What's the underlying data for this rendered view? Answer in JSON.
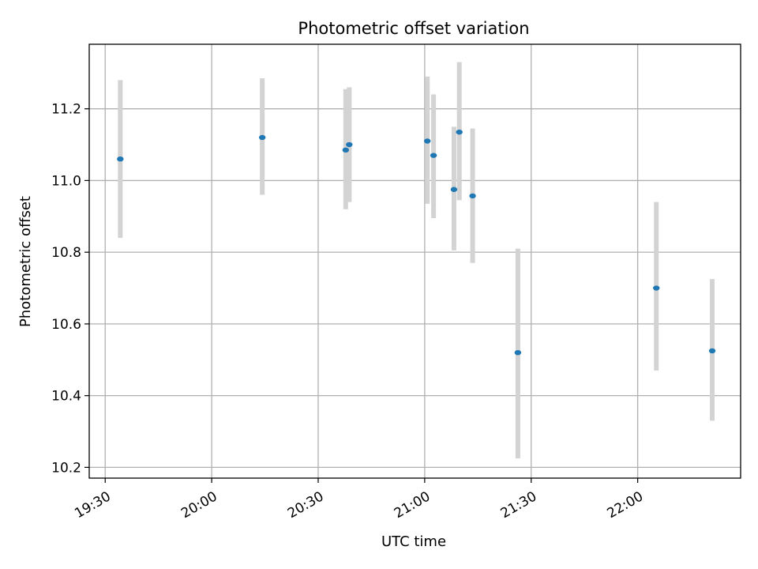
{
  "chart_data": {
    "type": "scatter",
    "title": "Photometric offset variation",
    "xlabel": "UTC time",
    "ylabel": "Photometric offset",
    "xlim": [
      "19:25:30",
      "22:29:00"
    ],
    "ylim": [
      10.17,
      11.38
    ],
    "x_ticks": [
      "19:30",
      "20:00",
      "20:30",
      "21:00",
      "21:30",
      "22:00"
    ],
    "y_ticks": [
      10.2,
      10.4,
      10.6,
      10.8,
      11.0,
      11.2
    ],
    "y_tick_labels": [
      "10.2",
      "10.4",
      "10.6",
      "10.8",
      "11.0",
      "11.2"
    ],
    "grid": true,
    "points": [
      {
        "x": "19:34:15",
        "y": 11.06,
        "err_low": 10.84,
        "err_high": 11.28
      },
      {
        "x": "20:14:15",
        "y": 11.12,
        "err_low": 10.96,
        "err_high": 11.285
      },
      {
        "x": "20:37:45",
        "y": 11.085,
        "err_low": 10.92,
        "err_high": 11.255
      },
      {
        "x": "20:38:45",
        "y": 11.1,
        "err_low": 10.94,
        "err_high": 11.26
      },
      {
        "x": "21:00:45",
        "y": 11.11,
        "err_low": 10.935,
        "err_high": 11.29
      },
      {
        "x": "21:02:30",
        "y": 11.07,
        "err_low": 10.895,
        "err_high": 11.24
      },
      {
        "x": "21:08:15",
        "y": 10.975,
        "err_low": 10.805,
        "err_high": 11.15
      },
      {
        "x": "21:09:45",
        "y": 11.135,
        "err_low": 10.945,
        "err_high": 11.33
      },
      {
        "x": "21:13:30",
        "y": 10.957,
        "err_low": 10.77,
        "err_high": 11.145
      },
      {
        "x": "21:26:15",
        "y": 10.52,
        "err_low": 10.225,
        "err_high": 10.81
      },
      {
        "x": "22:05:15",
        "y": 10.7,
        "err_low": 10.47,
        "err_high": 10.94
      },
      {
        "x": "22:21:00",
        "y": 10.525,
        "err_low": 10.33,
        "err_high": 10.725
      }
    ],
    "colors": {
      "point": "#1f77b4",
      "errorbar": "#d3d3d3",
      "grid": "#b0b0b0"
    }
  }
}
